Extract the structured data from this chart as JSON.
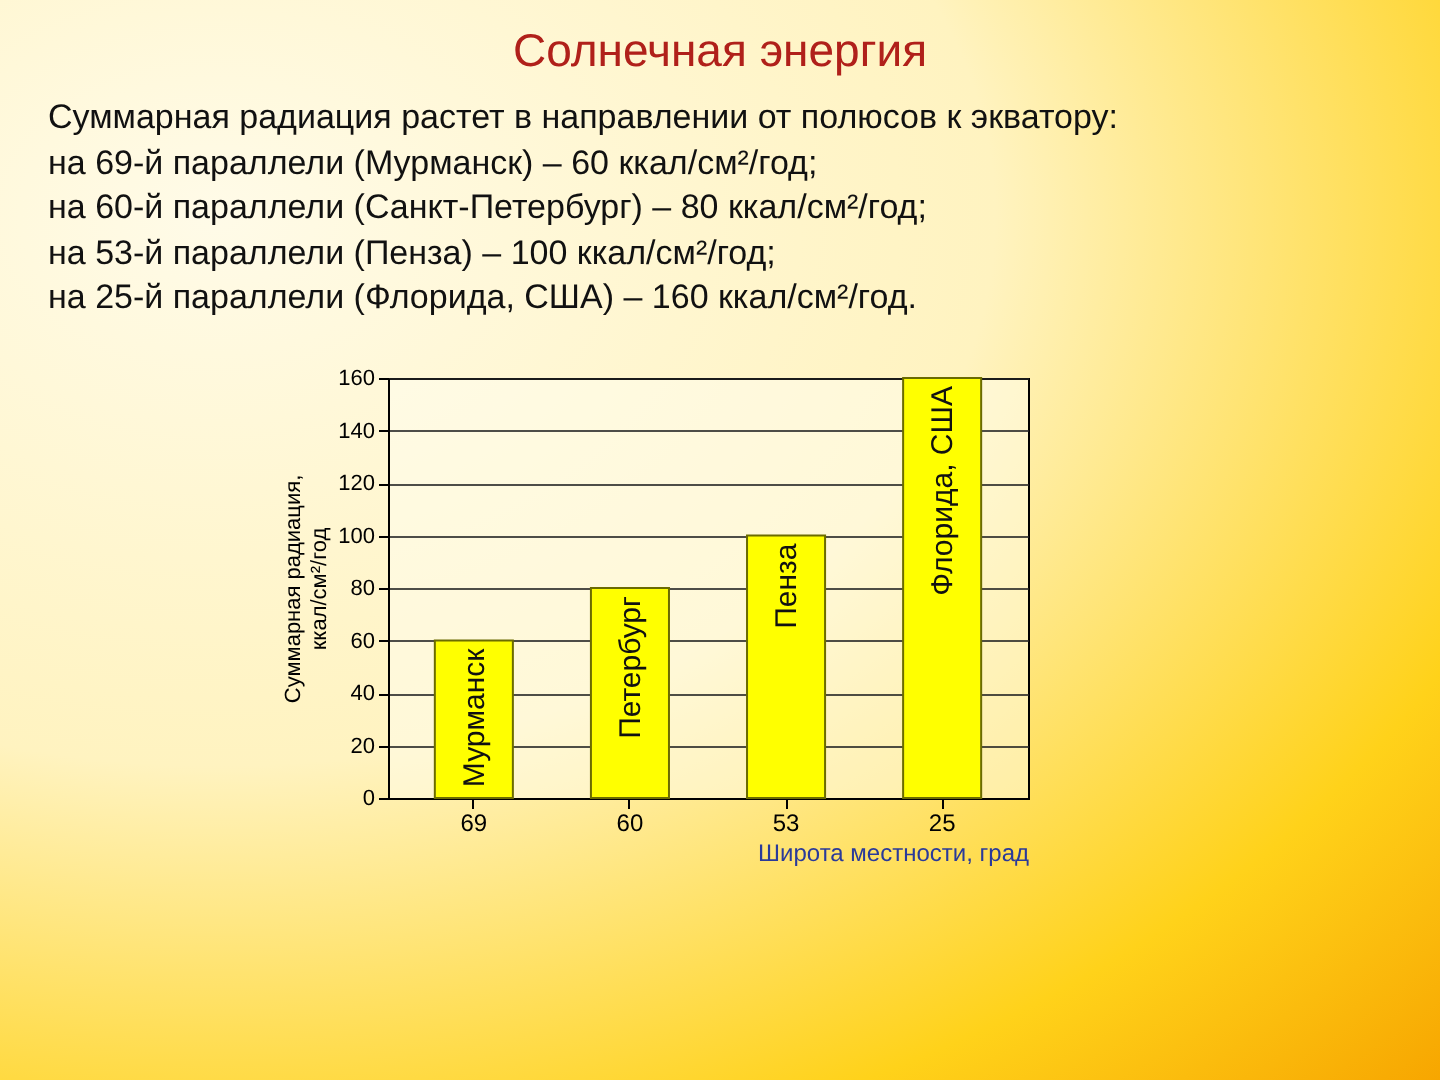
{
  "chart_data": {
    "type": "bar",
    "title": "Солнечная энергия",
    "subtitle": "Суммарная радиация растет в направлении от полюсов к экватору:",
    "categories": [
      "69",
      "60",
      "53",
      "25"
    ],
    "values": [
      60,
      80,
      100,
      160
    ],
    "color": "#ffff00",
    "ylim": [
      0,
      160
    ],
    "yticks": [
      0,
      20,
      40,
      60,
      80,
      100,
      120,
      140,
      160
    ],
    "grid": "y",
    "xlabel": "Широта местности, град",
    "ylabel": "Суммарная радиация,\nккал/см²/год",
    "annotations": [
      "на 69-й параллели (Мурманск) – 60 ккал/см²/год;",
      "на 60-й параллели (Санкт-Петербург) – 80 ккал/см²/год;",
      "на 53-й параллели (Пенза) – 100 ккал/см²/год;",
      "на 25-й параллели (Флорида, США) – 160 ккал/см²/год.",
      {
        "text": "Мурманск",
        "x": "69",
        "y": 60
      },
      {
        "text": "Петербург",
        "x": "60",
        "y": 80
      },
      {
        "text": "Пенза",
        "x": "53",
        "y": 100
      },
      {
        "text": "Флорида, США",
        "x": "25",
        "y": 160
      }
    ]
  }
}
